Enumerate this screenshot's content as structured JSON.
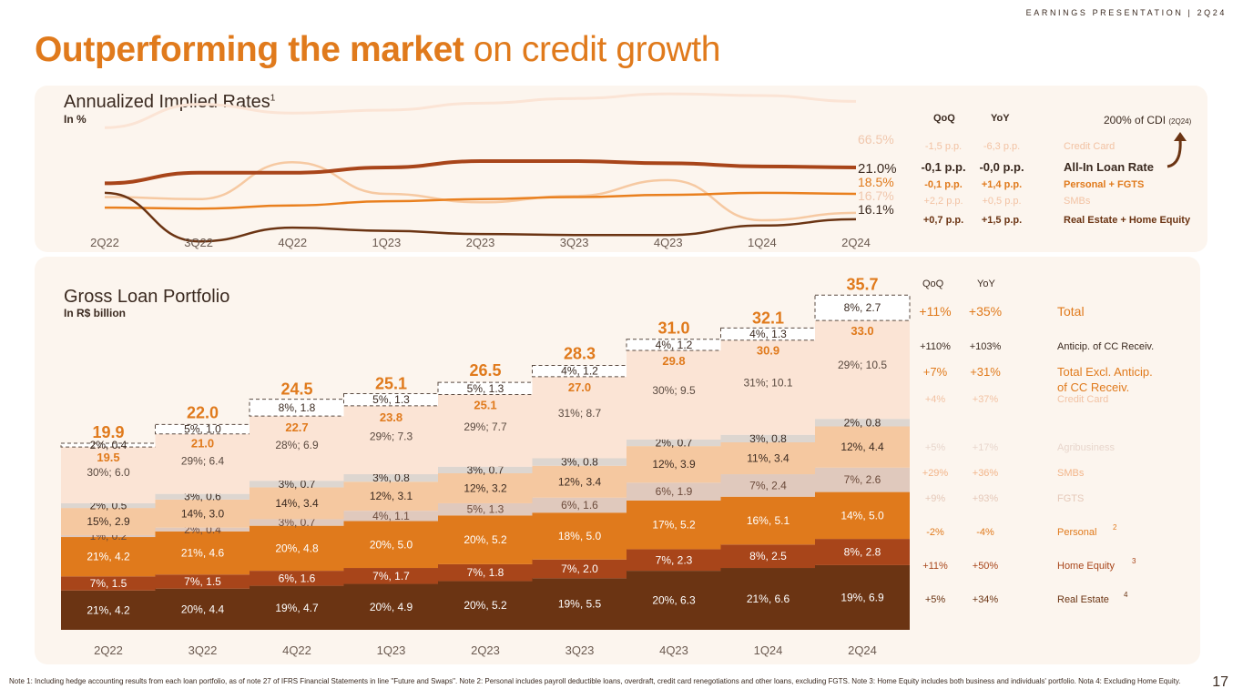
{
  "header": {
    "tag": "EARNINGS PRESENTATION | 2Q24",
    "title_bold": "Outperforming the market",
    "title_light": "on credit growth"
  },
  "colors": {
    "orange": "#e07a1c",
    "dark_brown": "#6b3413",
    "brown": "#a8451a",
    "peach": "#f5c8a0",
    "light_peach": "#fbe4d5",
    "grey": "#ddd6d0",
    "taupe": "#e0c9bd",
    "panel": "#fcf5ee"
  },
  "rates": {
    "title": "Annualized Implied Rates",
    "title_sup": "1",
    "subtitle": "In %",
    "col_qoq": "QoQ",
    "col_yoy": "YoY",
    "cdi_note": "200% of CDI",
    "cdi_note_small": "(2Q24)",
    "rows": [
      {
        "qoq": "-1,5 p.p.",
        "yoy": "-6,3 p.p.",
        "label": "Credit Card"
      },
      {
        "qoq": "-0,1 p.p.",
        "yoy": "-0,0 p.p.",
        "label": "All-In Loan Rate"
      },
      {
        "qoq": "-0,1 p.p.",
        "yoy": "+1,4 p.p.",
        "label": "Personal + FGTS"
      },
      {
        "qoq": "+2,2 p.p.",
        "yoy": "+0,5 p.p.",
        "label": "SMBs"
      },
      {
        "qoq": "+0,7 p.p.",
        "yoy": "+1,5 p.p.",
        "label": "Real Estate + Home Equity"
      }
    ]
  },
  "portfolio": {
    "title": "Gross Loan Portfolio",
    "subtitle": "In R$ billion",
    "col_qoq": "QoQ",
    "col_yoy": "YoY",
    "rows": [
      {
        "qoq": "+11%",
        "yoy": "+35%",
        "label": "Total",
        "sup": ""
      },
      {
        "qoq": "+110%",
        "yoy": "+103%",
        "label": "Anticip. of CC Receiv.",
        "sup": ""
      },
      {
        "qoq": "+7%",
        "yoy": "+31%",
        "label": "Total Excl. Anticip.",
        "label2": "of CC Receiv.",
        "sup": ""
      },
      {
        "qoq": "+4%",
        "yoy": "+37%",
        "label": "Credit Card",
        "sup": ""
      },
      {
        "qoq": "+5%",
        "yoy": "+17%",
        "label": "Agribusiness",
        "sup": ""
      },
      {
        "qoq": "+29%",
        "yoy": "+36%",
        "label": "SMBs",
        "sup": ""
      },
      {
        "qoq": "+9%",
        "yoy": "+93%",
        "label": "FGTS",
        "sup": ""
      },
      {
        "qoq": "-2%",
        "yoy": "-4%",
        "label": "Personal",
        "sup": "2"
      },
      {
        "qoq": "+11%",
        "yoy": "+50%",
        "label": "Home Equity",
        "sup": "3"
      },
      {
        "qoq": "+5%",
        "yoy": "+34%",
        "label": "Real Estate",
        "sup": "4"
      }
    ]
  },
  "chart_data": [
    {
      "type": "line",
      "title": "Annualized Implied Rates",
      "ylabel": "In %",
      "x": [
        "2Q22",
        "3Q22",
        "4Q22",
        "1Q23",
        "2Q23",
        "3Q23",
        "4Q23",
        "1Q24",
        "2Q24"
      ],
      "ylim": [
        14,
        70
      ],
      "series": [
        {
          "name": "Credit Card",
          "values": [
            62,
            66,
            64.5,
            65,
            66.2,
            67,
            67.8,
            67.5,
            66.5
          ],
          "end_label": "66.5%"
        },
        {
          "name": "All-In Loan Rate",
          "values": [
            19.5,
            20.5,
            20.5,
            21.0,
            21.6,
            21.6,
            21.4,
            21.1,
            21.0
          ],
          "end_label": "21.0%"
        },
        {
          "name": "Personal + FGTS",
          "values": [
            17.2,
            17.1,
            17.4,
            17.8,
            18.0,
            18.2,
            18.4,
            18.6,
            18.5
          ],
          "end_label": "18.5%"
        },
        {
          "name": "SMBs",
          "values": [
            18.2,
            18.0,
            21.5,
            18.5,
            17.7,
            18.3,
            19.8,
            16.0,
            16.7
          ],
          "end_label": "16.7%"
        },
        {
          "name": "Real Estate + Home Equity",
          "values": [
            18.6,
            14.0,
            15.3,
            15.0,
            14.7,
            14.6,
            14.6,
            15.5,
            16.1
          ],
          "end_label": "16.1%"
        }
      ]
    },
    {
      "type": "bar",
      "stacked": true,
      "title": "Gross Loan Portfolio",
      "ylabel": "In R$ billion",
      "categories": [
        "2Q22",
        "3Q22",
        "4Q22",
        "1Q23",
        "2Q23",
        "3Q23",
        "4Q23",
        "1Q24",
        "2Q24"
      ],
      "totals": [
        19.9,
        22.0,
        24.5,
        25.1,
        26.5,
        28.3,
        31.0,
        32.1,
        35.7
      ],
      "totals_excl": [
        19.5,
        21.0,
        22.7,
        23.8,
        25.1,
        27.0,
        29.8,
        30.9,
        33.0
      ],
      "series": [
        {
          "name": "Real Estate",
          "values": [
            4.2,
            4.4,
            4.7,
            4.9,
            5.2,
            5.5,
            6.3,
            6.6,
            6.9
          ],
          "labels": [
            "21%, 4.2",
            "20%, 4.4",
            "19%, 4.7",
            "20%, 4.9",
            "20%, 5.2",
            "19%, 5.5",
            "20%, 6.3",
            "21%, 6.6",
            "19%, 6.9"
          ]
        },
        {
          "name": "Home Equity",
          "values": [
            1.5,
            1.5,
            1.6,
            1.7,
            1.8,
            2.0,
            2.3,
            2.5,
            2.8
          ],
          "labels": [
            "7%, 1.5",
            "7%, 1.5",
            "6%, 1.6",
            "7%, 1.7",
            "7%, 1.8",
            "7%, 2.0",
            "7%, 2.3",
            "8%, 2.5",
            "8%, 2.8"
          ]
        },
        {
          "name": "Personal",
          "values": [
            4.2,
            4.6,
            4.8,
            5.0,
            5.2,
            5.0,
            5.2,
            5.1,
            5.0
          ],
          "labels": [
            "21%, 4.2",
            "21%, 4.6",
            "20%, 4.8",
            "20%, 5.0",
            "20%, 5.2",
            "18%, 5.0",
            "17%, 5.2",
            "16%, 5.1",
            "14%, 5.0"
          ]
        },
        {
          "name": "FGTS",
          "values": [
            0.2,
            0.4,
            0.7,
            1.1,
            1.3,
            1.6,
            1.9,
            2.4,
            2.6
          ],
          "labels": [
            "1%, 0.2",
            "2%, 0.4",
            "3%, 0.7",
            "4%, 1.1",
            "5%, 1.3",
            "6%, 1.6",
            "6%, 1.9",
            "7%, 2.4",
            "7%, 2.6"
          ]
        },
        {
          "name": "SMBs",
          "values": [
            2.9,
            3.0,
            3.4,
            3.1,
            3.2,
            3.4,
            3.9,
            3.4,
            4.4
          ],
          "labels": [
            "15%, 2.9",
            "14%, 3.0",
            "14%, 3.4",
            "12%, 3.1",
            "12%, 3.2",
            "12%, 3.4",
            "12%, 3.9",
            "11%, 3.4",
            "12%, 4.4"
          ]
        },
        {
          "name": "Agribusiness",
          "values": [
            0.5,
            0.6,
            0.7,
            0.8,
            0.7,
            0.8,
            0.7,
            0.8,
            0.8
          ],
          "labels": [
            "2%, 0.5",
            "3%, 0.6",
            "3%, 0.7",
            "3%, 0.8",
            "3%, 0.7",
            "3%, 0.8",
            "2%, 0.7",
            "3%, 0.8",
            "2%, 0.8"
          ]
        },
        {
          "name": "Credit Card",
          "values": [
            6.0,
            6.4,
            6.9,
            7.3,
            7.7,
            8.7,
            9.5,
            10.1,
            10.5
          ],
          "labels": [
            "30%; 6.0",
            "29%; 6.4",
            "28%; 6.9",
            "29%; 7.3",
            "29%; 7.7",
            "31%; 8.7",
            "30%; 9.5",
            "31%; 10.1",
            "29%; 10.5"
          ]
        },
        {
          "name": "Anticip. of CC Receiv.",
          "values": [
            0.4,
            1.0,
            1.8,
            1.3,
            1.3,
            1.2,
            1.2,
            1.3,
            2.7
          ],
          "labels": [
            "2%, 0.4",
            "5%, 1.0",
            "8%, 1.8",
            "5%, 1.3",
            "5%, 1.3",
            "4%, 1.2",
            "4%, 1.2",
            "4%, 1.3",
            "8%, 2.7"
          ]
        }
      ]
    }
  ],
  "footnote": "Note 1: Including hedge accounting results from each loan portfolio, as of note 27 of IFRS Financial Statements in line \"Future and Swaps\". Note 2: Personal includes payroll deductible loans, overdraft, credit card renegotiations and other loans, excluding FGTS. Note 3: Home Equity includes both business and individuals' portfolio. Nota 4: Excluding Home Equity.",
  "page_number": "17"
}
